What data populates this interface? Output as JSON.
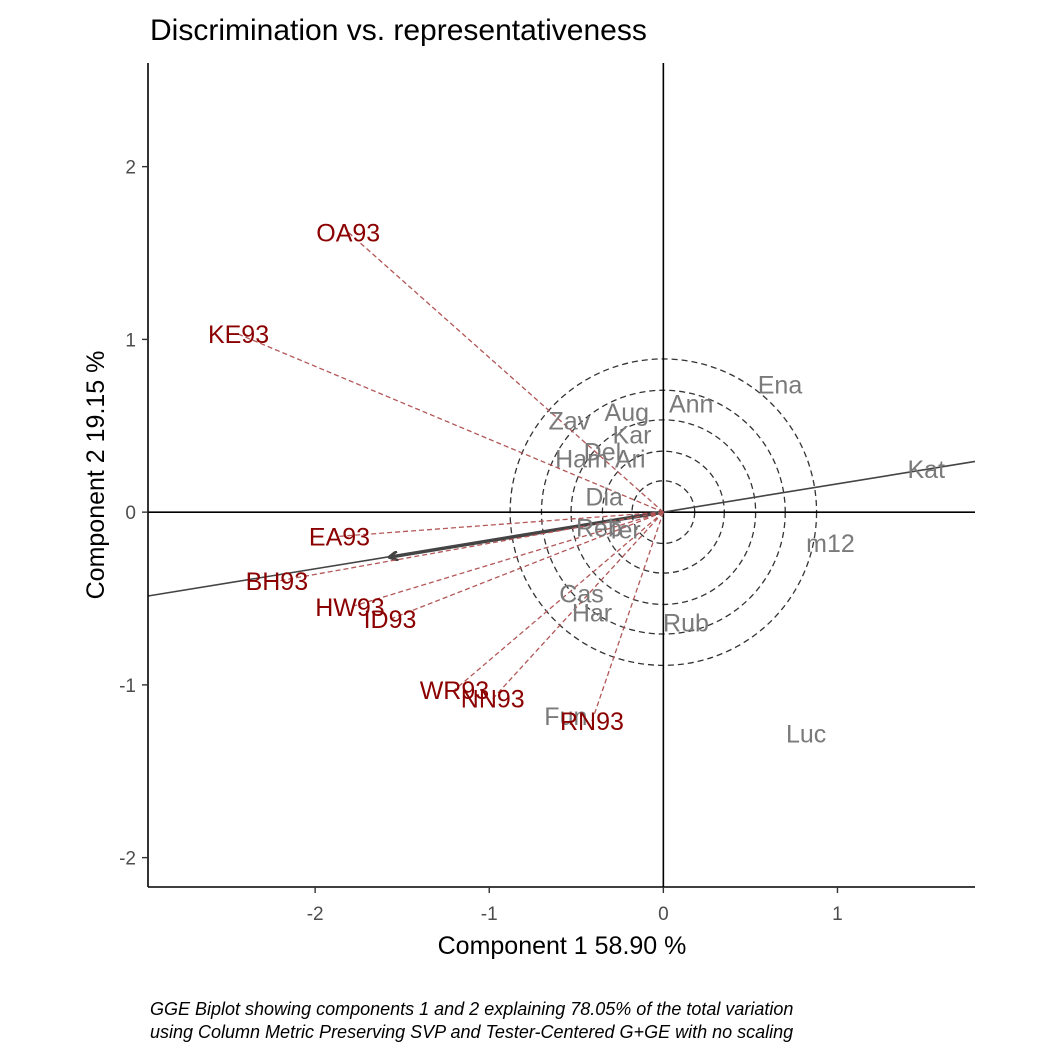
{
  "chart_data": {
    "type": "scatter",
    "title": "Discrimination vs. representativeness",
    "xlabel": "Component 1 58.90 %",
    "ylabel": "Component 2 19.15 %",
    "xlim": [
      -2.96,
      1.79
    ],
    "ylim": [
      -2.17,
      2.6
    ],
    "x_ticks": [
      -2,
      -1,
      0,
      1
    ],
    "y_ticks": [
      -2,
      -1,
      0,
      1,
      2
    ],
    "grid": false,
    "caption": [
      "GGE Biplot showing components 1 and 2 explaining 78.05% of the total variation",
      "using Column Metric Preserving SVP and Tester-Centered G+GE with no scaling"
    ],
    "aec_axis_slope": 0.164,
    "average_environment": {
      "x": -1.57,
      "y": -0.26
    },
    "concentric_circle_radii": [
      0.18,
      0.35,
      0.53,
      0.7,
      0.88
    ],
    "series": [
      {
        "name": "Genotypes",
        "color": "#7a7a7a",
        "points": [
          {
            "label": "Ena",
            "x": 0.67,
            "y": 0.74
          },
          {
            "label": "Ann",
            "x": 0.16,
            "y": 0.63
          },
          {
            "label": "Aug",
            "x": -0.21,
            "y": 0.58
          },
          {
            "label": "Zav",
            "x": -0.54,
            "y": 0.53
          },
          {
            "label": "Kar",
            "x": -0.18,
            "y": 0.45
          },
          {
            "label": "Del",
            "x": -0.35,
            "y": 0.35
          },
          {
            "label": "Ari",
            "x": -0.19,
            "y": 0.31
          },
          {
            "label": "Ham",
            "x": -0.47,
            "y": 0.31
          },
          {
            "label": "Dia",
            "x": -0.34,
            "y": 0.09
          },
          {
            "label": "Kat",
            "x": 1.51,
            "y": 0.25
          },
          {
            "label": "Reb",
            "x": -0.37,
            "y": -0.09
          },
          {
            "label": "Ter",
            "x": -0.23,
            "y": -0.1
          },
          {
            "label": "m12",
            "x": 0.96,
            "y": -0.18
          },
          {
            "label": "Cas",
            "x": -0.47,
            "y": -0.47
          },
          {
            "label": "Har",
            "x": -0.41,
            "y": -0.58
          },
          {
            "label": "Rub",
            "x": 0.13,
            "y": -0.64
          },
          {
            "label": "Fun",
            "x": -0.56,
            "y": -1.18
          },
          {
            "label": "Luc",
            "x": 0.82,
            "y": -1.28
          }
        ]
      },
      {
        "name": "Environments",
        "color": "#8b0000",
        "points": [
          {
            "label": "OA93",
            "x": -1.81,
            "y": 1.62
          },
          {
            "label": "KE93",
            "x": -2.44,
            "y": 1.03
          },
          {
            "label": "EA93",
            "x": -1.86,
            "y": -0.14
          },
          {
            "label": "BH93",
            "x": -2.22,
            "y": -0.4
          },
          {
            "label": "HW93",
            "x": -1.8,
            "y": -0.55
          },
          {
            "label": "ID93",
            "x": -1.57,
            "y": -0.62
          },
          {
            "label": "WR93",
            "x": -1.2,
            "y": -1.03
          },
          {
            "label": "NN93",
            "x": -0.98,
            "y": -1.08
          },
          {
            "label": "RN93",
            "x": -0.41,
            "y": -1.21
          }
        ]
      }
    ]
  }
}
